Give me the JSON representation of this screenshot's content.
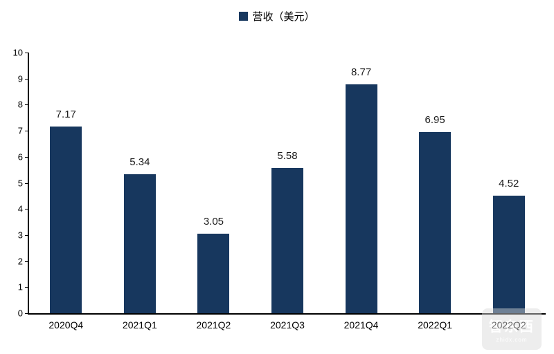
{
  "chart_data": {
    "type": "bar",
    "title": "",
    "legend": "营收（美元）",
    "categories": [
      "2020Q4",
      "2021Q1",
      "2021Q2",
      "2021Q3",
      "2021Q4",
      "2022Q1",
      "2022Q2"
    ],
    "values": [
      7.17,
      5.34,
      3.05,
      5.58,
      8.77,
      6.95,
      4.52
    ],
    "labels": [
      "7.17",
      "5.34",
      "3.05",
      "5.58",
      "8.77",
      "6.95",
      "4.52"
    ],
    "xlabel": "",
    "ylabel": "",
    "ylim": [
      0,
      10
    ],
    "ytick_step": 1,
    "yticks": [
      0,
      1,
      2,
      3,
      4,
      5,
      6,
      7,
      8,
      9,
      10
    ],
    "bar_color": "#17375E",
    "grid": false,
    "legend_position": "top-center"
  },
  "watermark": {
    "text": "智东西",
    "subtext": "zhidx.com"
  }
}
